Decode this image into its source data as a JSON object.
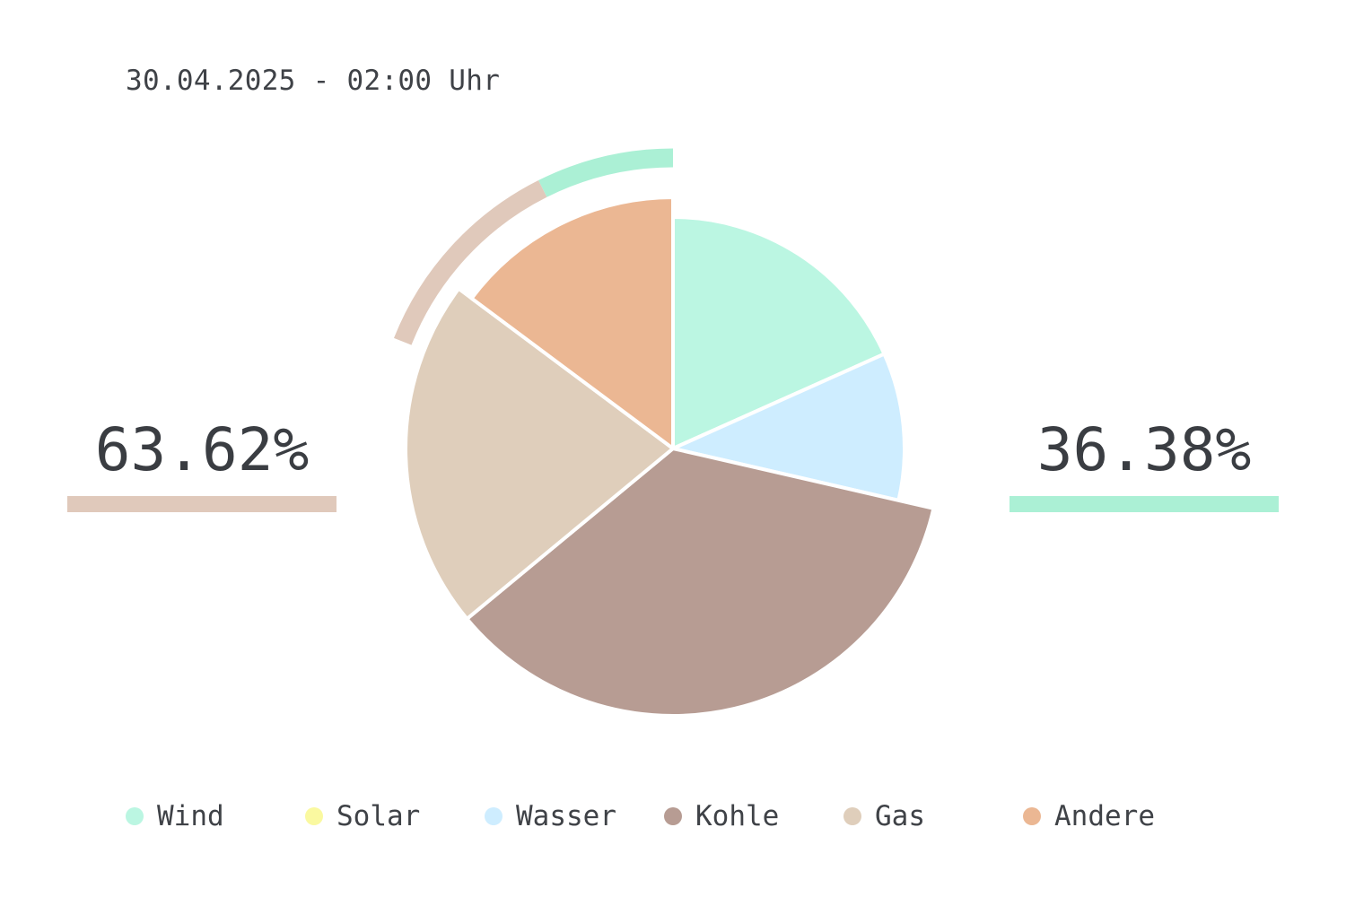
{
  "timestamp": "30.04.2025 - 02:00 Uhr",
  "summary": {
    "left": {
      "value": "63.62%",
      "color": "#e0c9bb"
    },
    "right": {
      "value": "36.38%",
      "color": "#abf0d5"
    }
  },
  "chart_data": {
    "type": "pie",
    "title": "",
    "categories": [
      "Wind",
      "Solar",
      "Wasser",
      "Kohle",
      "Gas",
      "Andere"
    ],
    "values": [
      18.3,
      0,
      10.3,
      35.4,
      21.2,
      14.8
    ],
    "colors": [
      "#bbf6e2",
      "#faf9a0",
      "#ceedff",
      "#b79c93",
      "#dfcebb",
      "#ebb793"
    ],
    "outer_arcs": [
      {
        "name": "renewable",
        "color": "#abf0d5",
        "value": 7.4
      },
      {
        "name": "fossil",
        "color": "#e0c9bb",
        "value": 11.6
      }
    ],
    "legend_position": "bottom"
  },
  "legend": [
    {
      "label": "Wind",
      "color": "#bbf6e2"
    },
    {
      "label": "Solar",
      "color": "#faf9a0"
    },
    {
      "label": "Wasser",
      "color": "#ceedff"
    },
    {
      "label": "Kohle",
      "color": "#b79c93"
    },
    {
      "label": "Gas",
      "color": "#dfcebb"
    },
    {
      "label": "Andere",
      "color": "#ebb793"
    }
  ]
}
